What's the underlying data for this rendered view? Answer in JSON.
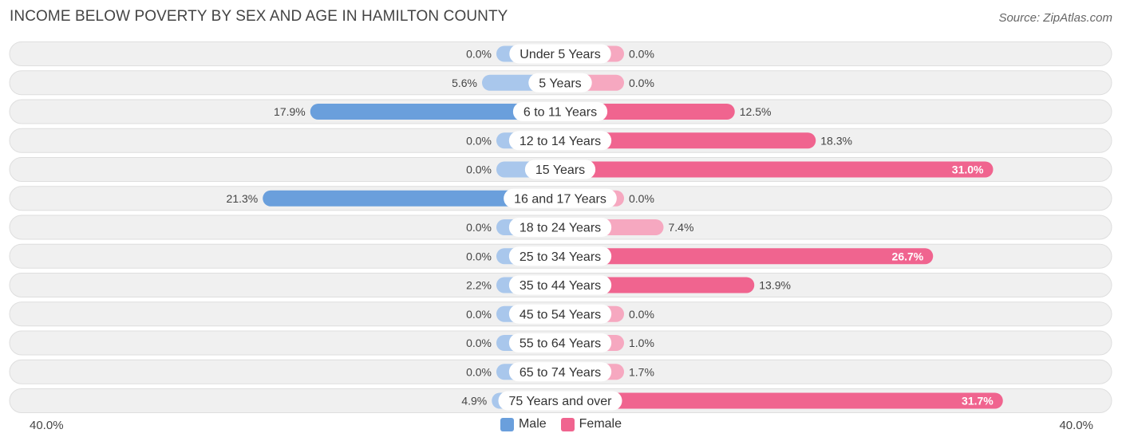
{
  "title": "INCOME BELOW POVERTY BY SEX AND AGE IN HAMILTON COUNTY",
  "source": "Source: ZipAtlas.com",
  "colors": {
    "male_strong": "#6a9fdc",
    "male_light": "#a9c7ec",
    "female_strong": "#f0648f",
    "female_light": "#f6a8c0",
    "row_bg": "#f0f0f0",
    "row_border": "#dedede"
  },
  "legend": {
    "male_label": "Male",
    "female_label": "Female"
  },
  "axis": {
    "left_label": "40.0%",
    "right_label": "40.0%"
  },
  "chart_data": {
    "type": "bar",
    "orientation": "horizontal-diverging",
    "title": "INCOME BELOW POVERTY BY SEX AND AGE IN HAMILTON COUNTY",
    "xlim": [
      -40,
      40
    ],
    "categories": [
      "Under 5 Years",
      "5 Years",
      "6 to 11 Years",
      "12 to 14 Years",
      "15 Years",
      "16 and 17 Years",
      "18 to 24 Years",
      "25 to 34 Years",
      "35 to 44 Years",
      "45 to 54 Years",
      "55 to 64 Years",
      "65 to 74 Years",
      "75 Years and over"
    ],
    "series": [
      {
        "name": "Male",
        "values": [
          0.0,
          5.6,
          17.9,
          0.0,
          0.0,
          21.3,
          0.0,
          0.0,
          2.2,
          0.0,
          0.0,
          0.0,
          4.9
        ],
        "labels": [
          "0.0%",
          "5.6%",
          "17.9%",
          "0.0%",
          "0.0%",
          "21.3%",
          "0.0%",
          "0.0%",
          "2.2%",
          "0.0%",
          "0.0%",
          "0.0%",
          "4.9%"
        ]
      },
      {
        "name": "Female",
        "values": [
          0.0,
          0.0,
          12.5,
          18.3,
          31.0,
          0.0,
          7.4,
          26.7,
          13.9,
          0.0,
          1.0,
          1.7,
          31.7
        ],
        "labels": [
          "0.0%",
          "0.0%",
          "12.5%",
          "18.3%",
          "31.0%",
          "0.0%",
          "7.4%",
          "26.7%",
          "13.9%",
          "0.0%",
          "1.0%",
          "1.7%",
          "31.7%"
        ]
      }
    ]
  }
}
